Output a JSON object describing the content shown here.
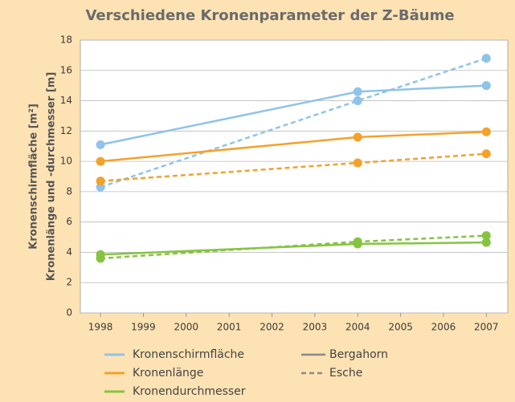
{
  "chart_data": {
    "type": "line",
    "title": "Verschiedene Kronenparameter der Z-Bäume",
    "ylabel": [
      "Kronenschirmfläche [m²]",
      "Kronenlänge und -durchmesser [m]"
    ],
    "x": [
      1998,
      2004,
      2007
    ],
    "xlim": [
      1997.53,
      2007.5
    ],
    "xticks": [
      1998,
      1999,
      2000,
      2001,
      2002,
      2003,
      2004,
      2005,
      2006,
      2007
    ],
    "ylim": [
      0,
      18
    ],
    "yticks": [
      0,
      2,
      4,
      6,
      8,
      10,
      12,
      14,
      16,
      18
    ],
    "grid": true,
    "line_styles": [
      {
        "name": "Bergahorn",
        "dash": "solid"
      },
      {
        "name": "Esche",
        "dash": "dashed"
      }
    ],
    "groups": [
      {
        "name": "Kronenschirmfläche",
        "color": "#8fc3e8",
        "series": [
          {
            "values": [
              11.1,
              14.6,
              15.0
            ]
          },
          {
            "values": [
              8.3,
              14.0,
              16.8
            ]
          }
        ]
      },
      {
        "name": "Kronenlänge",
        "color": "#f4a12a",
        "series": [
          {
            "values": [
              10.0,
              11.6,
              11.95
            ]
          },
          {
            "values": [
              8.7,
              9.9,
              10.5
            ]
          }
        ]
      },
      {
        "name": "Kronendurchmesser",
        "color": "#86c440",
        "series": [
          {
            "values": [
              3.85,
              4.55,
              4.65
            ]
          },
          {
            "values": [
              3.6,
              4.7,
              5.1
            ]
          }
        ]
      }
    ]
  }
}
